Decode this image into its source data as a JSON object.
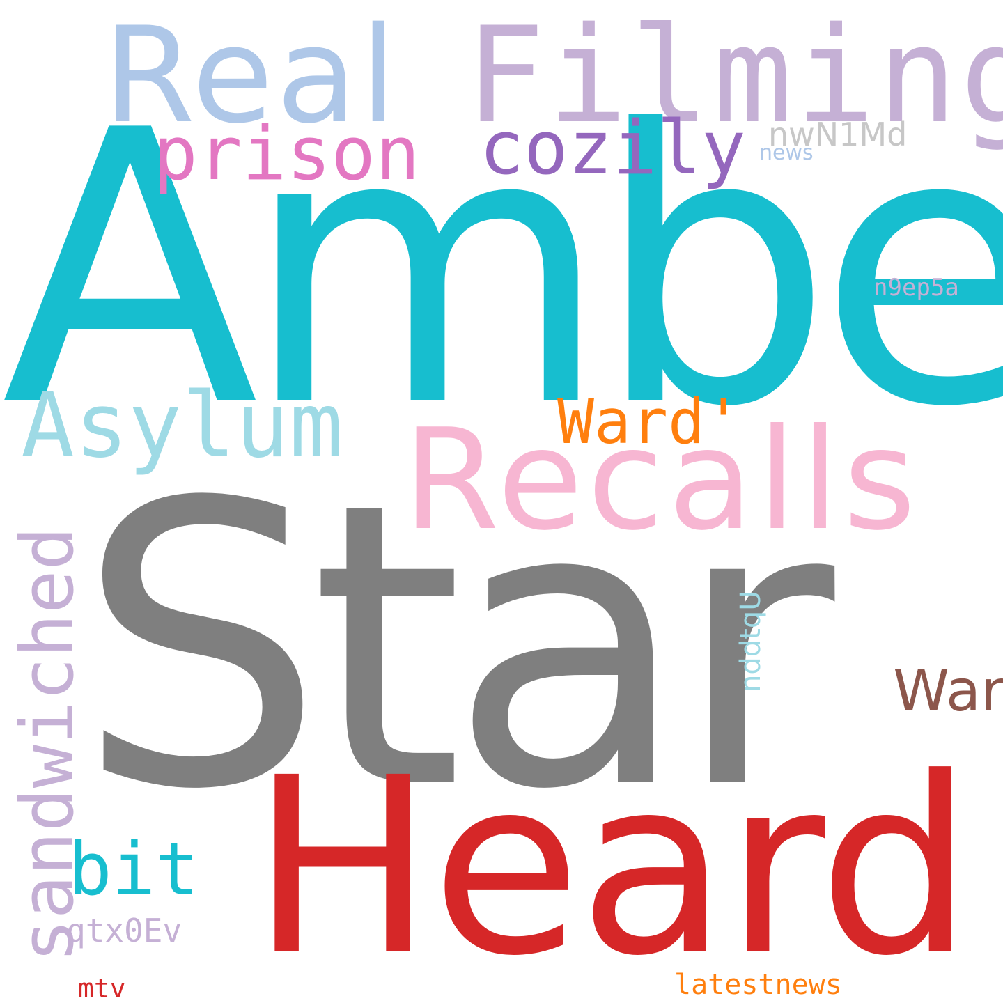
{
  "words": [
    {
      "id": "w-real",
      "text": "Real",
      "color": "#aec7e8"
    },
    {
      "id": "w-filming",
      "text": "Filming",
      "color": "#c5b0d5"
    },
    {
      "id": "w-amber",
      "text": "Amber",
      "color": "#17becf"
    },
    {
      "id": "w-prison",
      "text": "prison",
      "color": "#e377c2"
    },
    {
      "id": "w-cozily",
      "text": "cozily",
      "color": "#9467bd"
    },
    {
      "id": "w-nwn1md",
      "text": "nwN1Md",
      "color": "#c7c7c7"
    },
    {
      "id": "w-news",
      "text": "news",
      "color": "#aec7e8"
    },
    {
      "id": "w-n9ep5a",
      "text": "n9ep5a",
      "color": "#c5b0d5"
    },
    {
      "id": "w-asylum",
      "text": "Asylum",
      "color": "#9edae5"
    },
    {
      "id": "w-ward2",
      "text": "Ward'",
      "color": "#ff7f0e"
    },
    {
      "id": "w-recalls",
      "text": "Recalls",
      "color": "#f7b6d2"
    },
    {
      "id": "w-star",
      "text": "Star",
      "color": "#7f7f7f"
    },
    {
      "id": "w-sandwiched",
      "text": "sandwiched",
      "color": "#c5b0d5",
      "orientation": "vertical"
    },
    {
      "id": "w-nddtqu",
      "text": "nddtqU",
      "color": "#9edae5",
      "orientation": "vertical"
    },
    {
      "id": "w-ward",
      "text": "Ward",
      "color": "#8c564b"
    },
    {
      "id": "w-heard",
      "text": "Heard",
      "color": "#d62728"
    },
    {
      "id": "w-bit",
      "text": "bit",
      "color": "#17becf"
    },
    {
      "id": "w-qtx0ev",
      "text": "qtx0Ev",
      "color": "#c5b0d5"
    },
    {
      "id": "w-mtv",
      "text": "mtv",
      "color": "#d62728"
    },
    {
      "id": "w-latestnews",
      "text": "latestnews",
      "color": "#ff7f0e"
    }
  ]
}
